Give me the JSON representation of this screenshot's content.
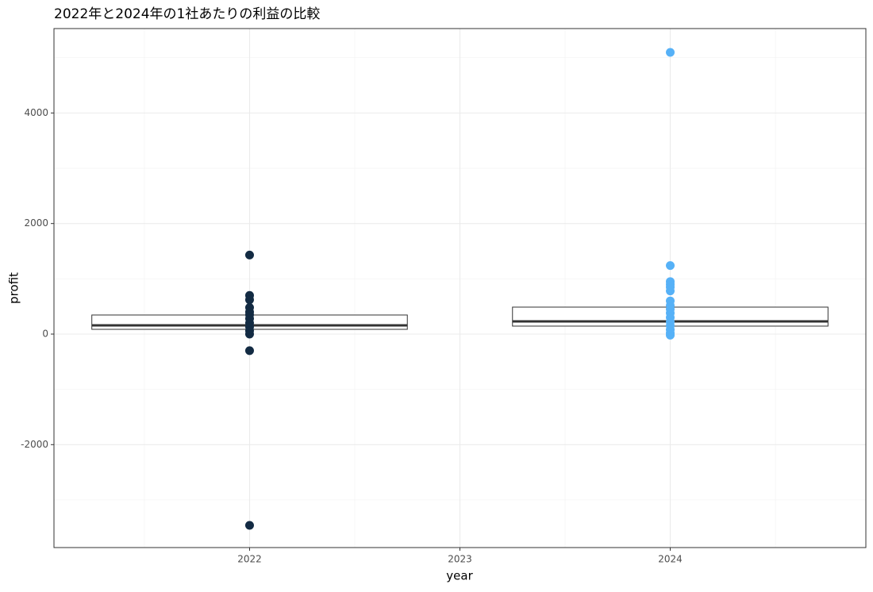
{
  "chart_data": {
    "type": "box",
    "title": "2022年と2024年の1社あたりの利益の比較",
    "x_label": "year",
    "y_label": "profit",
    "xlim": [
      2021.07,
      2024.93
    ],
    "xticks": [
      2022,
      2023,
      2024
    ],
    "ylim": [
      -3862,
      5527
    ],
    "yticks": [
      -2000,
      0,
      2000,
      4000
    ],
    "grid": true,
    "boxes": [
      {
        "x": 2022,
        "q1": 86,
        "median": 158,
        "q3": 345,
        "color": "#132b43",
        "points": [
          1430,
          700,
          620,
          480,
          400,
          350,
          280,
          200,
          130,
          60,
          0,
          -300,
          -3460
        ]
      },
      {
        "x": 2024,
        "q1": 144,
        "median": 230,
        "q3": 488,
        "color": "#56b1f7",
        "points": [
          5097,
          1240,
          950,
          900,
          850,
          780,
          600,
          520,
          450,
          380,
          300,
          220,
          150,
          80,
          20,
          -20
        ]
      }
    ]
  }
}
